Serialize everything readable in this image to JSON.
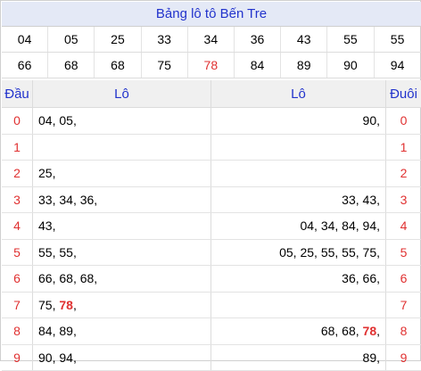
{
  "title": "Bảng lô tô Bến Tre",
  "numbers_row1": [
    "04",
    "05",
    "25",
    "33",
    "34",
    "36",
    "43",
    "55",
    "55"
  ],
  "numbers_row2": [
    "66",
    "68",
    "68",
    "75",
    "78",
    "84",
    "89",
    "90",
    "94"
  ],
  "highlight": "78",
  "header": {
    "dau": "Đầu",
    "lo_left": "Lô",
    "lo_right": "Lô",
    "duoi": "Đuôi"
  },
  "rows": [
    {
      "dau": "0",
      "left": [
        "04",
        "05"
      ],
      "right": [
        "90"
      ],
      "duoi": "0"
    },
    {
      "dau": "1",
      "left": [],
      "right": [],
      "duoi": "1"
    },
    {
      "dau": "2",
      "left": [
        "25"
      ],
      "right": [],
      "duoi": "2"
    },
    {
      "dau": "3",
      "left": [
        "33",
        "34",
        "36"
      ],
      "right": [
        "33",
        "43"
      ],
      "duoi": "3"
    },
    {
      "dau": "4",
      "left": [
        "43"
      ],
      "right": [
        "04",
        "34",
        "84",
        "94"
      ],
      "duoi": "4"
    },
    {
      "dau": "5",
      "left": [
        "55",
        "55"
      ],
      "right": [
        "05",
        "25",
        "55",
        "55",
        "75"
      ],
      "duoi": "5"
    },
    {
      "dau": "6",
      "left": [
        "66",
        "68",
        "68"
      ],
      "right": [
        "36",
        "66"
      ],
      "duoi": "6"
    },
    {
      "dau": "7",
      "left": [
        "75",
        "78"
      ],
      "right": [],
      "duoi": "7"
    },
    {
      "dau": "8",
      "left": [
        "84",
        "89"
      ],
      "right": [
        "68",
        "68",
        "78"
      ],
      "duoi": "8"
    },
    {
      "dau": "9",
      "left": [
        "90",
        "94"
      ],
      "right": [
        "89"
      ],
      "duoi": "9"
    }
  ],
  "colors": {
    "accent": "#2233cc",
    "highlight": "#e03030",
    "title_bg": "#e4e9f6"
  }
}
